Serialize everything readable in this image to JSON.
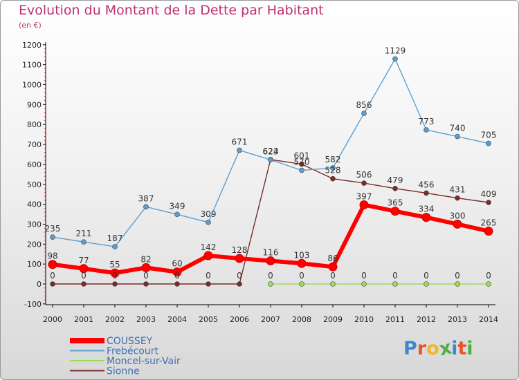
{
  "header": {
    "title": "Evolution du Montant de la Dette par Habitant",
    "subtitle": "(en €)"
  },
  "logo": {
    "text": "Proxiti",
    "colors": [
      "#3f86d1",
      "#e8542a",
      "#f2b722",
      "#4fb040",
      "#3f86d1",
      "#e8542a",
      "#4fb040"
    ]
  },
  "chart_data": {
    "type": "line",
    "x": [
      "2000",
      "2001",
      "2002",
      "2003",
      "2004",
      "2005",
      "2006",
      "2007",
      "2008",
      "2009",
      "2010",
      "2011",
      "2012",
      "2013",
      "2014"
    ],
    "ylim": [
      -100,
      1200
    ],
    "yticks": [
      -100,
      0,
      100,
      200,
      300,
      400,
      500,
      600,
      700,
      800,
      900,
      1000,
      1100,
      1200
    ],
    "grid": false,
    "legend_position": "bottom-left",
    "series": [
      {
        "name": "COUSSEY",
        "color": "#ff0000",
        "values": [
          98,
          77,
          55,
          82,
          60,
          142,
          128,
          116,
          103,
          86,
          397,
          365,
          334,
          300,
          265
        ]
      },
      {
        "name": "Frebécourt",
        "color": "#5b9fd2",
        "values": [
          235,
          211,
          187,
          387,
          349,
          309,
          671,
          623,
          570,
          582,
          856,
          1129,
          773,
          740,
          705
        ]
      },
      {
        "name": "Moncel-sur-Vair",
        "color": "#99dd55",
        "values": [
          null,
          null,
          null,
          null,
          null,
          null,
          null,
          0,
          0,
          0,
          0,
          0,
          0,
          0,
          0
        ]
      },
      {
        "name": "Sionne",
        "color": "#7b2a2a",
        "values": [
          0,
          0,
          0,
          0,
          0,
          0,
          0,
          624,
          601,
          528,
          506,
          479,
          456,
          431,
          409
        ]
      }
    ]
  }
}
